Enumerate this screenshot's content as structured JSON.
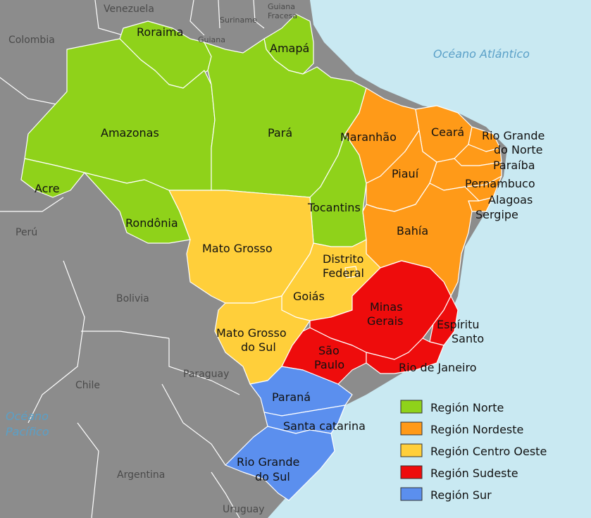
{
  "colors": {
    "sea": "#c9e9f2",
    "land": "#8c8c8c",
    "norte": "#8fd21a",
    "nordeste": "#ff9a18",
    "centro_oeste": "#ffcf3a",
    "sudeste": "#ee0c0c",
    "sur": "#5b8fee"
  },
  "oceans": {
    "atlantic": "Océano Atlántico",
    "pacific_line1": "Océano",
    "pacific_line2": "Pacífico"
  },
  "countries": {
    "venezuela": "Venezuela",
    "colombia": "Colombia",
    "guyana": "Guiana",
    "suriname": "Suriname",
    "french_guiana_line1": "Guiana",
    "french_guiana_line2": "Fracesa",
    "peru": "Perú",
    "bolivia": "Bolivia",
    "chile": "Chile",
    "paraguay": "Paraguay",
    "argentina": "Argentina",
    "uruguay": "Uruguay"
  },
  "states": {
    "roraima": "Roraima",
    "amapa": "Amapá",
    "amazonas": "Amazonas",
    "para": "Pará",
    "acre": "Acre",
    "rondonia": "Rondônia",
    "tocantins": "Tocantins",
    "maranhao": "Maranhão",
    "ceara": "Ceará",
    "rio_grande_norte_line1": "Rio Grande",
    "rio_grande_norte_line2": "do Norte",
    "paraiba": "Paraíba",
    "piaui": "Piauí",
    "pernambuco": "Pernambuco",
    "alagoas": "Alagoas",
    "sergipe": "Sergipe",
    "bahia": "Bahía",
    "mato_grosso": "Mato Grosso",
    "distrito_federal_line1": "Distrito",
    "distrito_federal_line2": "Federal",
    "goias": "Goiás",
    "minas_gerais_line1": "Minas",
    "minas_gerais_line2": "Gerais",
    "espirito_santo_line1": "Espíritu",
    "espirito_santo_line2": "Santo",
    "mato_grosso_sul_line1": "Mato Grosso",
    "mato_grosso_sul_line2": "do Sul",
    "sao_paulo_line1": "São",
    "sao_paulo_line2": "Paulo",
    "rio_de_janeiro": "Rio de Janeiro",
    "parana": "Paraná",
    "santa_catarina": "Santa catarina",
    "rio_grande_sul_line1": "Rio Grande",
    "rio_grande_sul_line2": "do Sul"
  },
  "legend": [
    {
      "label": "Región Norte",
      "color": "#8fd21a"
    },
    {
      "label": "Región Nordeste",
      "color": "#ff9a18"
    },
    {
      "label": "Región Centro Oeste",
      "color": "#ffcf3a"
    },
    {
      "label": "Región Sudeste",
      "color": "#ee0c0c"
    },
    {
      "label": "Región Sur",
      "color": "#5b8fee"
    }
  ]
}
